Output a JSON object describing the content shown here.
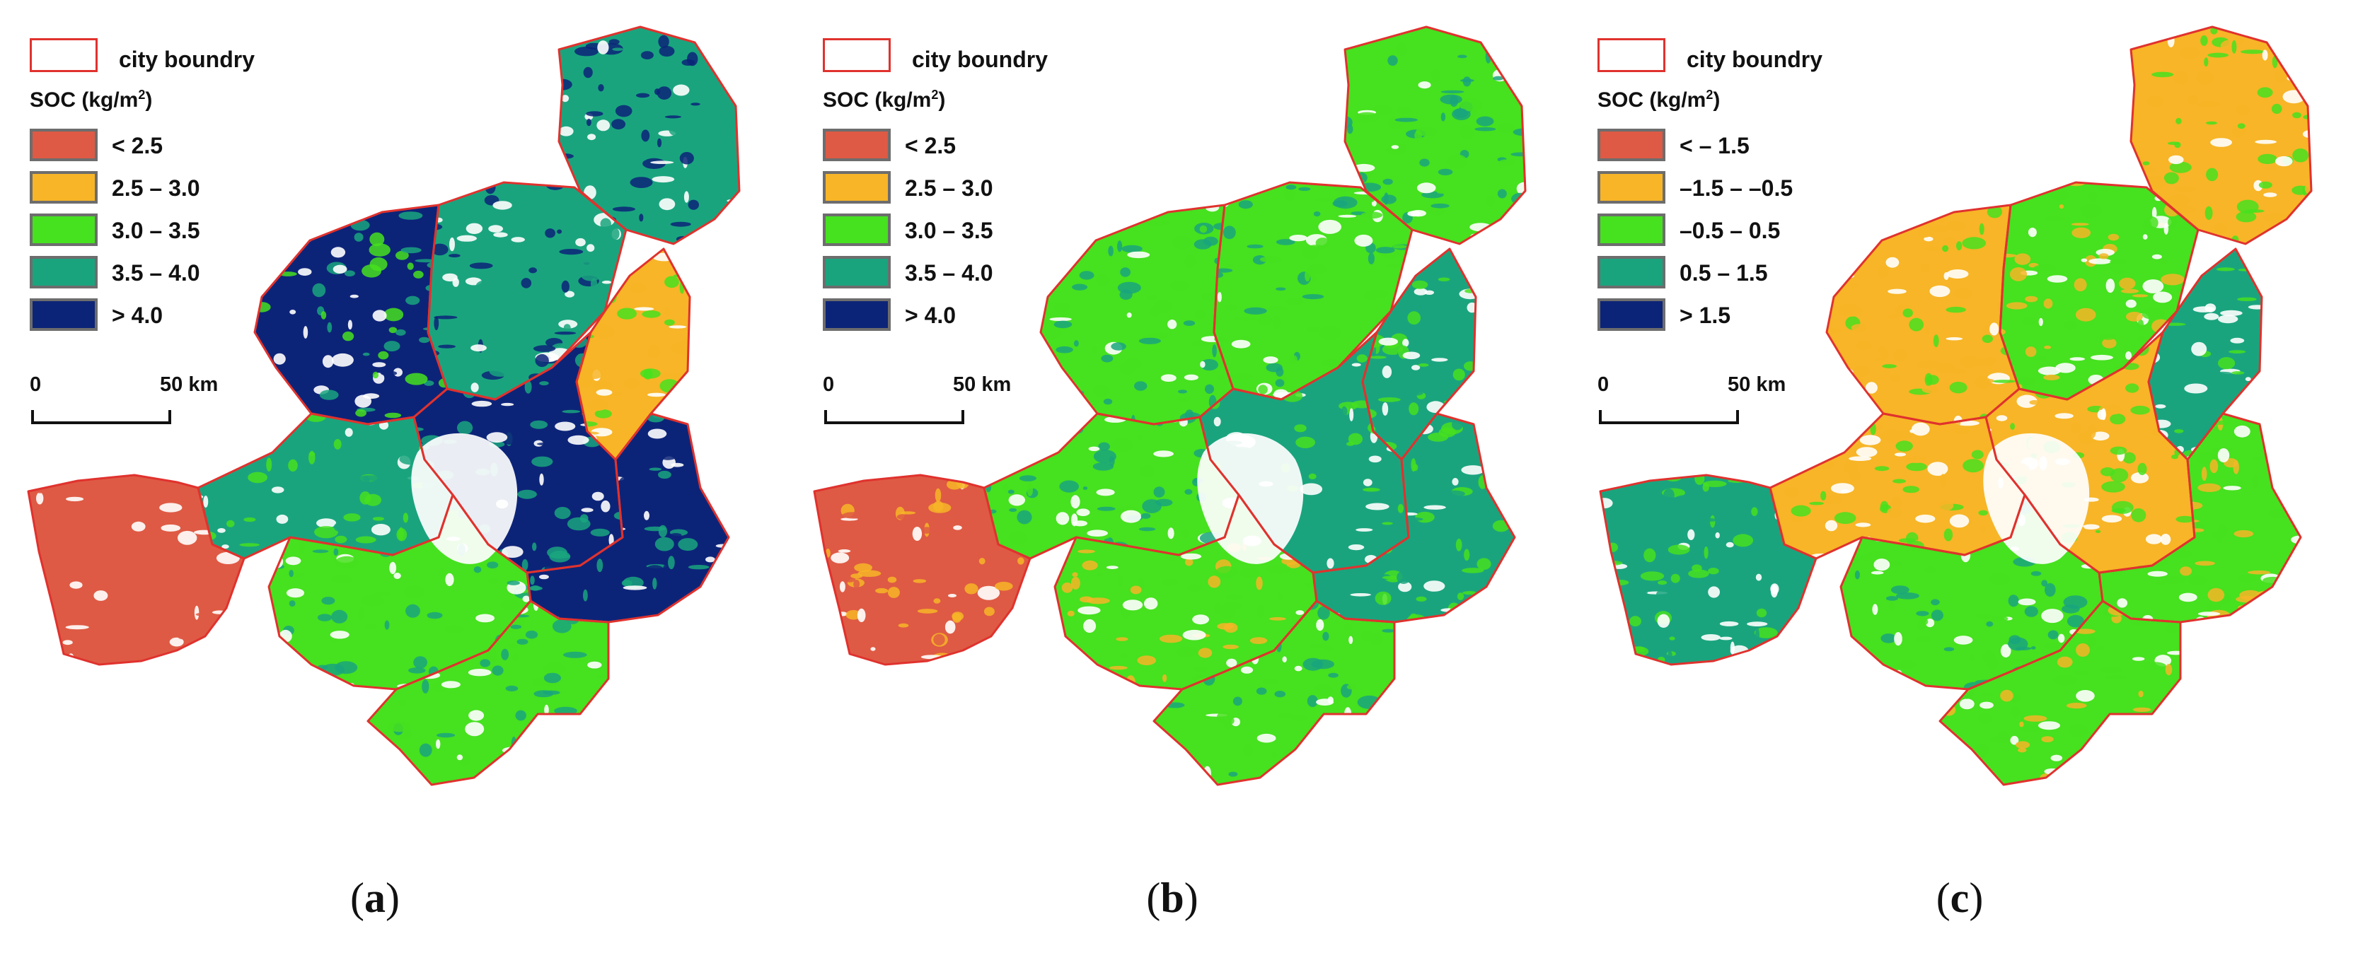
{
  "panels": [
    {
      "id": "a",
      "legend": {
        "boundary_label": "city boundry",
        "title_text": "SOC (kg/m",
        "title_sup": "2",
        "title_end": ")",
        "classes": [
          {
            "label": "< 2.5",
            "color": "#de5a44"
          },
          {
            "label": "2.5 – 3.0",
            "color": "#f7b527"
          },
          {
            "label": "3.0 – 3.5",
            "color": "#46e11f"
          },
          {
            "label": "3.5 – 4.0",
            "color": "#1aa47e"
          },
          {
            "label": "> 4.0",
            "color": "#0c2478"
          }
        ],
        "scale_zero": "0",
        "scale_fifty": "50 km"
      },
      "caption_open": "(",
      "caption_letter": "a",
      "caption_close": ")"
    },
    {
      "id": "b",
      "legend": {
        "boundary_label": "city boundry",
        "title_text": "SOC (kg/m",
        "title_sup": "2",
        "title_end": ")",
        "classes": [
          {
            "label": "< 2.5",
            "color": "#de5a44"
          },
          {
            "label": "2.5 – 3.0",
            "color": "#f7b527"
          },
          {
            "label": "3.0 – 3.5",
            "color": "#46e11f"
          },
          {
            "label": "3.5 – 4.0",
            "color": "#1aa47e"
          },
          {
            "label": "> 4.0",
            "color": "#0c2478"
          }
        ],
        "scale_zero": "0",
        "scale_fifty": "50 km"
      },
      "caption_open": "(",
      "caption_letter": "b",
      "caption_close": ")"
    },
    {
      "id": "c",
      "legend": {
        "boundary_label": "city boundry",
        "title_text": "SOC (kg/m",
        "title_sup": "2",
        "title_end": ")",
        "classes": [
          {
            "label": "< – 1.5",
            "color": "#de5a44"
          },
          {
            "label": "–1.5 – –0.5",
            "color": "#f7b527"
          },
          {
            "label": "–0.5 – 0.5",
            "color": "#46e11f"
          },
          {
            "label": "0.5 – 1.5",
            "color": "#1aa47e"
          },
          {
            "label": "> 1.5",
            "color": "#0c2478"
          }
        ],
        "scale_zero": "0",
        "scale_fifty": "50 km"
      },
      "caption_open": "(",
      "caption_letter": "c",
      "caption_close": ")"
    }
  ],
  "colors": {
    "boundary": "#e0322e",
    "background": "#ffffff",
    "gaps": "#ffffff"
  }
}
